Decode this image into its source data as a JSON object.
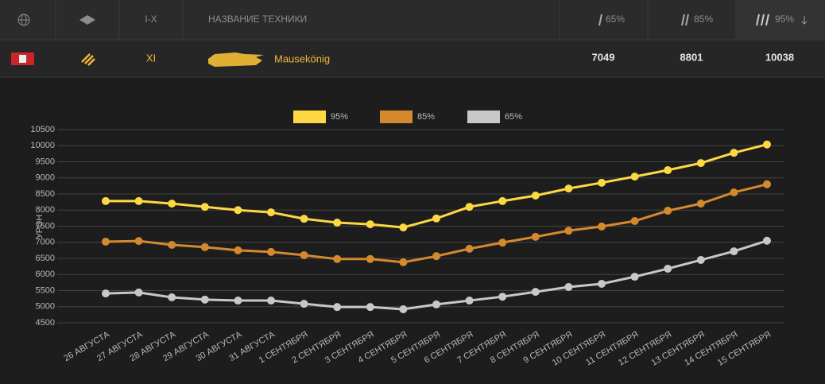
{
  "header": {
    "columns": [
      "I-X",
      "НАЗВАНИЕ ТЕХНИКИ",
      "65%",
      "85%",
      "95%"
    ]
  },
  "table": {
    "rows": [
      {
        "tier": "XI",
        "name": "Mausekönig",
        "values": [
          "7049",
          "8801",
          "10038"
        ]
      }
    ]
  },
  "chart_data": {
    "type": "line",
    "y_label": "УРОН",
    "categories": [
      "26 АВГУСТА",
      "27 АВГУСТА",
      "28 АВГУСТА",
      "29 АВГУСТА",
      "30 АВГУСТА",
      "31 АВГУСТА",
      "1 СЕНТЯБРЯ",
      "2 СЕНТЯБРЯ",
      "3 СЕНТЯБРЯ",
      "4 СЕНТЯБРЯ",
      "5 СЕНТЯБРЯ",
      "6 СЕНТЯБРЯ",
      "7 СЕНТЯБРЯ",
      "8 СЕНТЯБРЯ",
      "9 СЕНТЯБРЯ",
      "10 СЕНТЯБРЯ",
      "11 СЕНТЯБРЯ",
      "12 СЕНТЯБРЯ",
      "13 СЕНТЯБРЯ",
      "14 СЕНТЯБРЯ",
      "15 СЕНТЯБРЯ"
    ],
    "series": [
      {
        "name": "95%",
        "color": "#fdd842",
        "values": [
          8280,
          8280,
          8200,
          8100,
          8000,
          7930,
          7730,
          7610,
          7560,
          7460,
          7740,
          8100,
          8280,
          8450,
          8670,
          8850,
          9040,
          9240,
          9460,
          9780,
          10038
        ]
      },
      {
        "name": "85%",
        "color": "#d4892f",
        "values": [
          7020,
          7040,
          6920,
          6850,
          6750,
          6700,
          6600,
          6480,
          6480,
          6380,
          6570,
          6800,
          6990,
          7170,
          7360,
          7490,
          7660,
          7980,
          8200,
          8550,
          8801
        ]
      },
      {
        "name": "65%",
        "color": "#c8c8c8",
        "values": [
          5410,
          5440,
          5290,
          5220,
          5190,
          5190,
          5090,
          4990,
          4990,
          4920,
          5070,
          5190,
          5310,
          5460,
          5610,
          5710,
          5930,
          6180,
          6450,
          6720,
          7049
        ]
      }
    ],
    "ylim": [
      4500,
      10500
    ],
    "yticks": [
      4500,
      5000,
      5500,
      6000,
      6500,
      7000,
      7500,
      8000,
      8500,
      9000,
      9500,
      10000,
      10500
    ],
    "grid": true,
    "legend": "top"
  }
}
